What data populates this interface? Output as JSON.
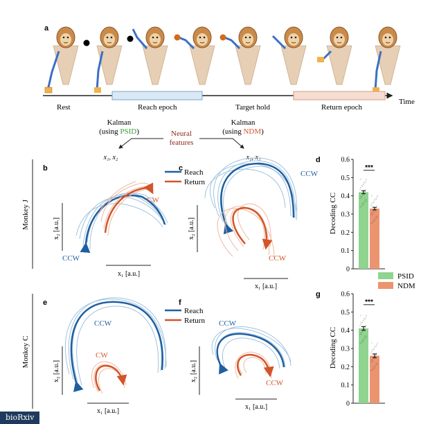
{
  "panel_labels": {
    "a": "a",
    "b": "b",
    "c": "c",
    "d": "d",
    "e": "e",
    "f": "f",
    "g": "g"
  },
  "timeline": {
    "rest": "Rest",
    "reach": "Reach epoch",
    "target_hold": "Target hold",
    "return": "Return epoch",
    "time": "Time"
  },
  "decoders": {
    "left_line1": "Kalman",
    "left_prefix": "(using ",
    "left_method": "PSID",
    "left_suffix": ")",
    "right_line1": "Kalman",
    "right_prefix": "(using ",
    "right_method": "NDM",
    "right_suffix": ")",
    "features_line1": "Neural",
    "features_line2": "features",
    "latent_left": "x₁, x₂",
    "latent_right": "x₁, x₂"
  },
  "legend": {
    "reach": "Reach",
    "return": "Return",
    "psid": "PSID",
    "ndm": "NDM"
  },
  "monkeys": {
    "j": "Monkey J",
    "c": "Monkey C"
  },
  "axes": {
    "x1": "x₁ [a.u.]",
    "x2": "x₂ [a.u.]",
    "decoding_cc": "Decoding CC"
  },
  "directions": {
    "b_ccw": "CCW",
    "b_cw": "CW",
    "c_ccw": "CCW",
    "c_ccw2": "CCW",
    "e_ccw": "CCW",
    "e_cw": "CW",
    "f_ccw": "CCW",
    "f_ccw2": "CCW"
  },
  "colors": {
    "reach": "#1f5fa0",
    "return": "#d2552a",
    "psid": "#8fd48f",
    "ndm": "#ec9470",
    "reach_light": "#9ec3e0",
    "return_light": "#f0b8a0"
  },
  "credit": "bioRxiv",
  "chart_data": [
    {
      "type": "bar",
      "panel": "d",
      "categories": [
        "PSID",
        "NDM"
      ],
      "values": [
        0.42,
        0.33
      ],
      "errors": [
        0.008,
        0.007
      ],
      "ylabel": "Decoding CC",
      "ylim": [
        0,
        0.6
      ],
      "yticks": [
        "0",
        "0.1",
        "0.2",
        "0.3",
        "0.4",
        "0.5",
        "0.6"
      ],
      "significance": "***"
    },
    {
      "type": "bar",
      "panel": "g",
      "categories": [
        "PSID",
        "NDM"
      ],
      "values": [
        0.41,
        0.26
      ],
      "errors": [
        0.01,
        0.01
      ],
      "ylabel": "Decoding CC",
      "ylim": [
        0,
        0.6
      ],
      "yticks": [
        "0",
        "0.1",
        "0.2",
        "0.3",
        "0.4",
        "0.5",
        "0.6"
      ],
      "significance": "***"
    }
  ]
}
